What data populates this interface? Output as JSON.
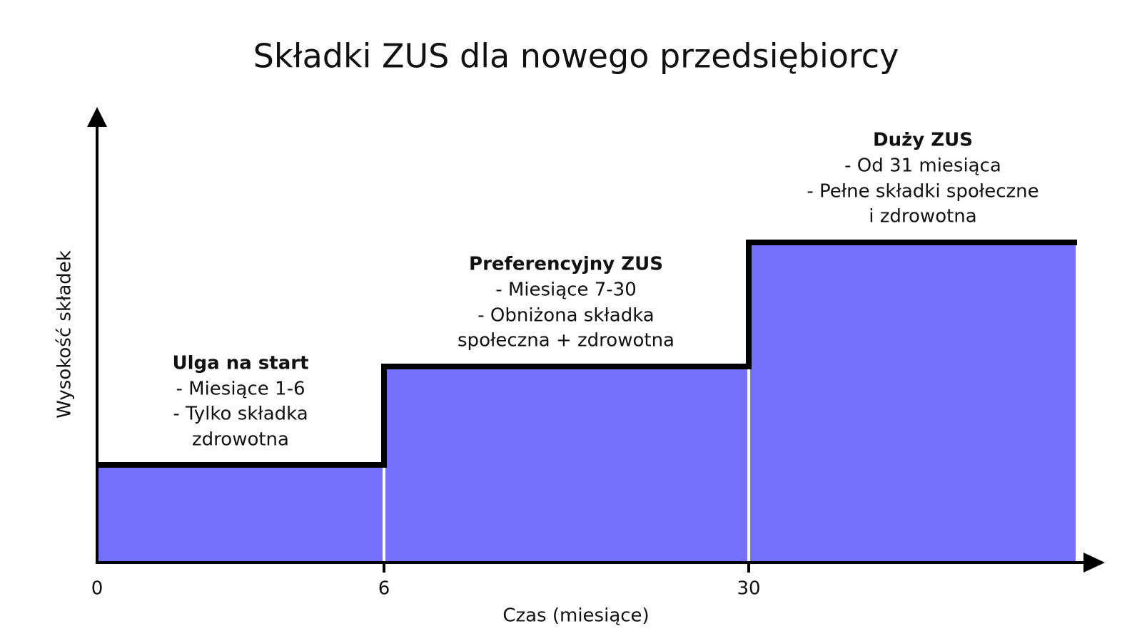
{
  "title": "Składki ZUS dla nowego przedsiębiorcy",
  "y_axis_label": "Wysokość składek",
  "x_axis_label": "Czas (miesiące)",
  "x_ticks": [
    "0",
    "6",
    "30"
  ],
  "segments": [
    {
      "title": "Ulga na start",
      "lines": [
        "- Miesiące 1-6",
        "- Tylko składka",
        "zdrowotna"
      ]
    },
    {
      "title": "Preferencyjny ZUS",
      "lines": [
        "- Miesiące 7-30",
        "- Obniżona składka",
        "społeczna + zdrowotna"
      ]
    },
    {
      "title": "Duży ZUS",
      "lines": [
        "- Od 31 miesiąca",
        "- Pełne składki społeczne",
        "i zdrowotna"
      ]
    }
  ]
}
